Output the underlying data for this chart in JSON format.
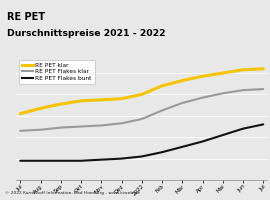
{
  "title_line1": "RE PET",
  "title_line2": "Durschnittspreise 2021 - 2022",
  "title_bg": "#f5c400",
  "title_color": "#000000",
  "footer_text": "© 2022 Kunststoff Information, Bad Homburg - www.kiweb.de",
  "footer_bg": "#a0a0a0",
  "plot_bg": "#e8e8e8",
  "fig_bg": "#e8e8e8",
  "x_labels": [
    "Jul",
    "Aug",
    "Sep",
    "Okt",
    "Nov",
    "Dez",
    "2022",
    "Feb",
    "Mär",
    "Apr",
    "Mai",
    "Jun",
    "Jul"
  ],
  "series": [
    {
      "name": "RE PET klar",
      "color": "#f5c400",
      "linewidth": 2.2,
      "data": [
        62,
        67,
        71,
        74,
        75,
        76,
        80,
        88,
        93,
        97,
        100,
        103,
        104
      ]
    },
    {
      "name": "RE PET Flakes klar",
      "color": "#999999",
      "linewidth": 1.5,
      "data": [
        46,
        47,
        49,
        50,
        51,
        53,
        57,
        65,
        72,
        77,
        81,
        84,
        85
      ]
    },
    {
      "name": "RE PET Flakes bunt",
      "color": "#111111",
      "linewidth": 1.5,
      "data": [
        18,
        18,
        18,
        18,
        19,
        20,
        22,
        26,
        31,
        36,
        42,
        48,
        52
      ]
    }
  ],
  "ylim": [
    0,
    115
  ],
  "title_fontsize": 7.0,
  "legend_fontsize": 4.2,
  "tick_fontsize": 4.0
}
